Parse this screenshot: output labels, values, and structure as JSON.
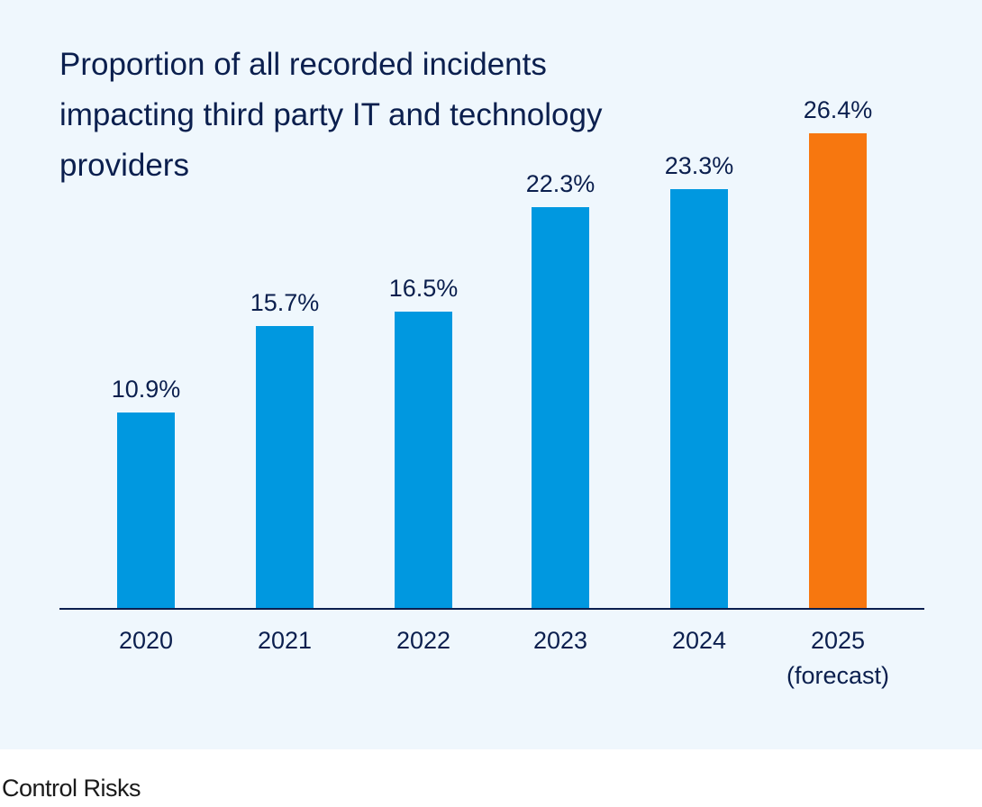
{
  "chart_data": {
    "type": "bar",
    "title": "Proportion of all recorded incidents impacting third party IT and technology providers",
    "categories": [
      "2020",
      "2021",
      "2022",
      "2023",
      "2024",
      "2025\n(forecast)"
    ],
    "values": [
      10.9,
      15.7,
      16.5,
      22.3,
      23.3,
      26.4
    ],
    "value_labels": [
      "10.9%",
      "15.7%",
      "16.5%",
      "22.3%",
      "23.3%",
      "26.4%"
    ],
    "xlabel": "",
    "ylabel": "",
    "ylim": [
      0,
      30
    ],
    "grid": false,
    "legend": "none",
    "colors": {
      "actual": "#0098e0",
      "forecast": "#f7770f",
      "text": "#0b1f4e",
      "axis": "#0b1f4e",
      "background": "#eff7fd"
    },
    "forecast_index": 5
  },
  "footer": {
    "credit": "Control Risks"
  }
}
